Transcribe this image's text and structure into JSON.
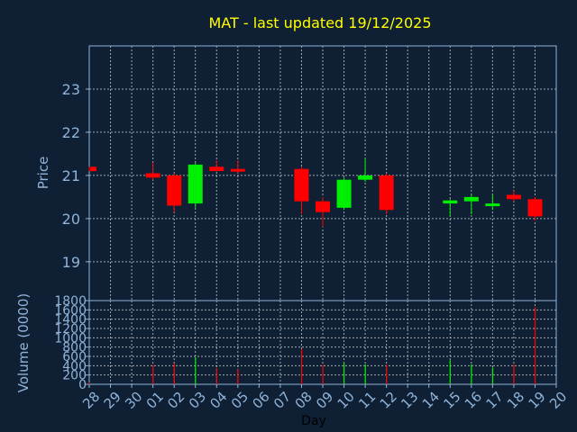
{
  "colors": {
    "background": "#0f2034",
    "title": "#ffff00",
    "axis": "#8fb3d9",
    "grid": "#c8c8c8",
    "up": "#00ee00",
    "down": "#ff0000"
  },
  "chart_data": [
    {
      "type": "candlestick",
      "title": "MAT - last updated 19/12/2025",
      "ylabel": "Price",
      "ylim": [
        18.1,
        24.0
      ],
      "yticks": [
        19,
        20,
        21,
        22,
        23
      ],
      "grid": true,
      "x_ticks": [
        "28",
        "29",
        "30",
        "01",
        "02",
        "03",
        "04",
        "05",
        "06",
        "07",
        "08",
        "09",
        "10",
        "11",
        "12",
        "13",
        "14",
        "15",
        "16",
        "17",
        "18",
        "19",
        "20"
      ],
      "candles": [
        {
          "day": "28",
          "open": 21.2,
          "high": 21.2,
          "low": 21.1,
          "close": 21.1
        },
        {
          "day": "01",
          "open": 21.05,
          "high": 21.3,
          "low": 20.9,
          "close": 20.95
        },
        {
          "day": "02",
          "open": 21.0,
          "high": 21.05,
          "low": 20.15,
          "close": 20.3
        },
        {
          "day": "03",
          "open": 20.35,
          "high": 21.3,
          "low": 20.25,
          "close": 21.25
        },
        {
          "day": "04",
          "open": 21.2,
          "high": 21.35,
          "low": 21.1,
          "close": 21.1
        },
        {
          "day": "05",
          "open": 21.15,
          "high": 21.35,
          "low": 21.05,
          "close": 21.13
        },
        {
          "day": "08",
          "open": 21.15,
          "high": 21.2,
          "low": 20.1,
          "close": 20.4
        },
        {
          "day": "09",
          "open": 20.4,
          "high": 20.5,
          "low": 19.8,
          "close": 20.15
        },
        {
          "day": "10",
          "open": 20.25,
          "high": 20.95,
          "low": 20.2,
          "close": 20.9
        },
        {
          "day": "11",
          "open": 20.9,
          "high": 21.4,
          "low": 20.85,
          "close": 21.0
        },
        {
          "day": "12",
          "open": 21.0,
          "high": 21.05,
          "low": 20.1,
          "close": 20.2
        },
        {
          "day": "15",
          "open": 20.35,
          "high": 20.45,
          "low": 20.05,
          "close": 20.42
        },
        {
          "day": "16",
          "open": 20.4,
          "high": 20.55,
          "low": 20.1,
          "close": 20.5
        },
        {
          "day": "17",
          "open": 20.32,
          "high": 20.55,
          "low": 20.2,
          "close": 20.35
        },
        {
          "day": "18",
          "open": 20.55,
          "high": 20.65,
          "low": 20.4,
          "close": 20.45
        },
        {
          "day": "19",
          "open": 20.45,
          "high": 20.5,
          "low": 19.95,
          "close": 20.05
        }
      ]
    },
    {
      "type": "bar",
      "ylabel": "Volume (0000)",
      "xlabel": "Day",
      "ylim": [
        0,
        1800
      ],
      "yticks": [
        0,
        200,
        400,
        600,
        800,
        1000,
        1200,
        1400,
        1600,
        1800
      ],
      "grid": true,
      "bars": [
        {
          "day": "28",
          "value": 40,
          "direction": "down"
        },
        {
          "day": "01",
          "value": 420,
          "direction": "down"
        },
        {
          "day": "02",
          "value": 450,
          "direction": "down"
        },
        {
          "day": "03",
          "value": 580,
          "direction": "up"
        },
        {
          "day": "04",
          "value": 350,
          "direction": "down"
        },
        {
          "day": "05",
          "value": 320,
          "direction": "down"
        },
        {
          "day": "08",
          "value": 760,
          "direction": "down"
        },
        {
          "day": "09",
          "value": 420,
          "direction": "down"
        },
        {
          "day": "10",
          "value": 460,
          "direction": "up"
        },
        {
          "day": "11",
          "value": 430,
          "direction": "up"
        },
        {
          "day": "12",
          "value": 420,
          "direction": "down"
        },
        {
          "day": "15",
          "value": 520,
          "direction": "up"
        },
        {
          "day": "16",
          "value": 430,
          "direction": "up"
        },
        {
          "day": "17",
          "value": 360,
          "direction": "up"
        },
        {
          "day": "18",
          "value": 430,
          "direction": "down"
        },
        {
          "day": "19",
          "value": 1660,
          "direction": "down"
        }
      ]
    }
  ]
}
